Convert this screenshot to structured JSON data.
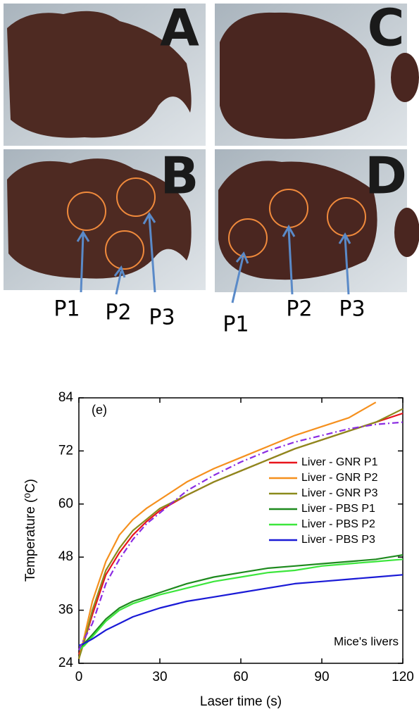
{
  "figure": {
    "panels": [
      "A",
      "B",
      "C",
      "D"
    ],
    "points_left": [
      "P1",
      "P2",
      "P3"
    ],
    "points_right": [
      "P1",
      "P2",
      "P3"
    ]
  },
  "chart_data": {
    "type": "line",
    "title": "(e)",
    "annotation": "Mice's livers",
    "x_label": "Laser time (s)",
    "y_label": "Temperature (⁰C)",
    "x": [
      0,
      2,
      5,
      10,
      15,
      20,
      25,
      30,
      40,
      50,
      60,
      70,
      80,
      90,
      100,
      110,
      120
    ],
    "series": [
      {
        "name": "Liver - GNR P1",
        "color": "#e8141c",
        "values": [
          26,
          29,
          35,
          44,
          49,
          53,
          56,
          58.5,
          62,
          65,
          67.5,
          70,
          72.5,
          74.5,
          76.5,
          78.5,
          80.5
        ]
      },
      {
        "name": "Liver - GNR P2",
        "color": "#f5901e",
        "values": [
          25,
          30,
          38,
          47,
          53,
          56.5,
          59,
          61,
          65,
          68,
          70.5,
          73,
          75.5,
          77.5,
          79.5,
          83,
          null
        ]
      },
      {
        "name": "Liver - GNR P3",
        "color": "#8b8b1c",
        "values": [
          25,
          29,
          36,
          45,
          50,
          54,
          56.5,
          59,
          62,
          65,
          67.5,
          70,
          72.5,
          74.5,
          76.5,
          78.5,
          81.5
        ]
      },
      {
        "name": "Liver - PBS  P1",
        "color": "#1e8a1e",
        "values": [
          27,
          28.5,
          30.5,
          34,
          36.5,
          38,
          39,
          40,
          42,
          43.5,
          44.5,
          45.5,
          46,
          46.5,
          47,
          47.5,
          48.5
        ]
      },
      {
        "name": "Liver - PBS  P2",
        "color": "#3ce63c",
        "values": [
          27,
          28,
          30,
          33.5,
          36,
          37.5,
          38.5,
          39.5,
          41,
          42.5,
          43.5,
          44.5,
          45,
          46,
          46.5,
          47,
          47.5
        ]
      },
      {
        "name": "Liver - PBS  P3",
        "color": "#1a1ad6",
        "values": [
          28,
          28.5,
          29.5,
          31.5,
          33,
          34.5,
          35.5,
          36.5,
          38,
          39,
          40,
          41,
          42,
          42.5,
          43,
          43.5,
          44
        ]
      },
      {
        "color": "#8a2be2",
        "linestyle": "dashdot",
        "values": [
          27,
          29.5,
          33,
          42,
          47.5,
          52,
          55.5,
          58,
          63,
          66.5,
          69.5,
          72,
          74,
          75.5,
          77,
          78,
          78.5
        ]
      }
    ],
    "xlim": [
      0,
      120
    ],
    "xticks": [
      0,
      30,
      60,
      90,
      120
    ],
    "ylim": [
      24,
      84
    ],
    "yticks": [
      24,
      36,
      48,
      60,
      72,
      84
    ],
    "legend": "right",
    "grid": false
  }
}
